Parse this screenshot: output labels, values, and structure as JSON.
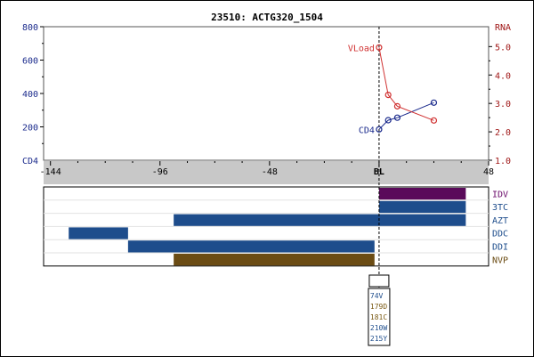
{
  "chart_data": {
    "type": "line",
    "title": "23510: ACTG320_1504",
    "x_axis": {
      "ticks": [
        -144,
        -96,
        -48,
        "BL",
        48
      ],
      "range": [
        -147,
        48
      ]
    },
    "left_axis": {
      "label": "CD4",
      "ticks": [
        200,
        400,
        600,
        800
      ],
      "range": [
        0,
        800
      ],
      "color": "#1a2a8c"
    },
    "right_axis": {
      "label": "RNA",
      "ticks": [
        "1.0",
        "2.0",
        "3.0",
        "4.0",
        "5.0"
      ],
      "range": [
        1.0,
        5.7
      ],
      "color": "#a01818"
    },
    "series": [
      {
        "name": "CD4",
        "axis": "left",
        "color": "#1a2a8c",
        "points": [
          [
            0,
            185
          ],
          [
            4,
            240
          ],
          [
            8,
            255
          ],
          [
            24,
            345
          ]
        ]
      },
      {
        "name": "VLoad",
        "axis": "right",
        "color": "#d03030",
        "points": [
          [
            0,
            4.97
          ],
          [
            4,
            3.3
          ],
          [
            8,
            2.9
          ],
          [
            24,
            2.4
          ]
        ]
      }
    ],
    "drugs": [
      {
        "name": "IDV",
        "color": "#5a0a5a",
        "label_color": "#6a0a6a",
        "start": 0,
        "end": 38
      },
      {
        "name": "3TC",
        "color": "#1e4d8c",
        "label_color": "#1e4d8c",
        "start": 0,
        "end": 38
      },
      {
        "name": "AZT",
        "color": "#1e4d8c",
        "label_color": "#1e4d8c",
        "start": -90,
        "end": 38
      },
      {
        "name": "DDC",
        "color": "#1e4d8c",
        "label_color": "#1e4d8c",
        "start": -136,
        "end": -110
      },
      {
        "name": "DDI",
        "color": "#1e4d8c",
        "label_color": "#1e4d8c",
        "start": -110,
        "end": -2
      },
      {
        "name": "NVP",
        "color": "#6b4c14",
        "label_color": "#6b4c14",
        "start": -90,
        "end": -2
      }
    ],
    "mutations": [
      {
        "text": "74V",
        "color": "#1e4d8c"
      },
      {
        "text": "179D",
        "color": "#7a5a14"
      },
      {
        "text": "181C",
        "color": "#7a5a14"
      },
      {
        "text": "210W",
        "color": "#1e4d8c"
      },
      {
        "text": "215Y",
        "color": "#1e4d8c"
      }
    ]
  }
}
